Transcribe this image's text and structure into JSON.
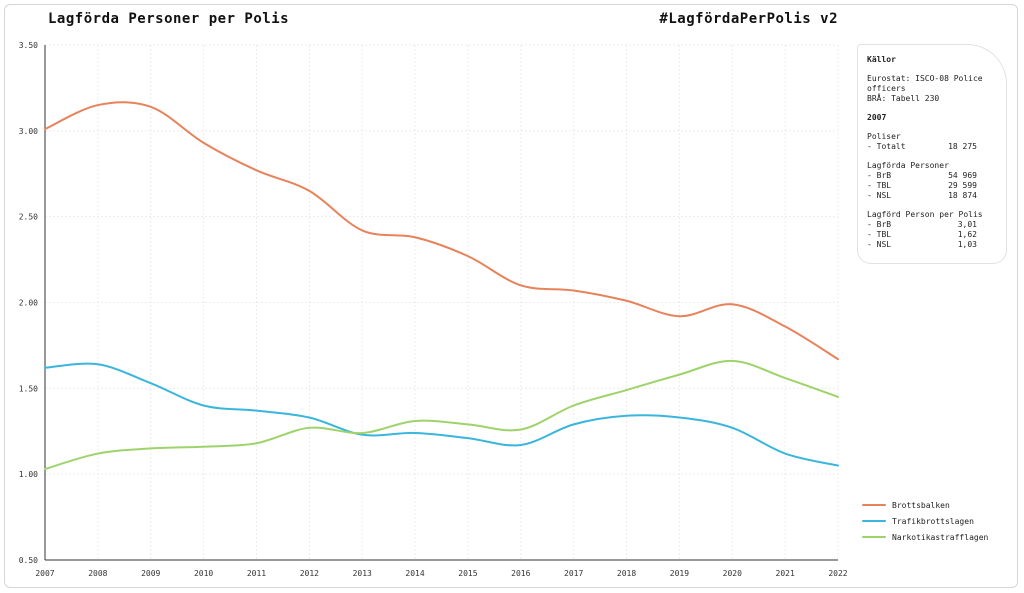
{
  "header": {
    "title": "Lagförda Personer per Polis",
    "hashtag": "#LagfördaPerPolis v2"
  },
  "info": {
    "sources_heading": "Källor",
    "sources": [
      "Eurostat: ISCO-08 Police\nofficers",
      "BRÅ: Tabell 230"
    ],
    "year_heading": "2007",
    "police_heading": "Poliser",
    "police_rows": [
      {
        "label": "- Totalt",
        "value": "18 275"
      }
    ],
    "persons_heading": "Lagförda Personer",
    "persons_rows": [
      {
        "label": "- BrB",
        "value": "54 969"
      },
      {
        "label": "- TBL",
        "value": "29 599"
      },
      {
        "label": "- NSL",
        "value": "18 874"
      }
    ],
    "ratio_heading": "Lagförd Person per Polis",
    "ratio_rows": [
      {
        "label": "- BrB",
        "value": "3,01"
      },
      {
        "label": "- TBL",
        "value": "1,62"
      },
      {
        "label": "- NSL",
        "value": "1,03"
      }
    ]
  },
  "chart_data": {
    "type": "line",
    "title": "Lagförda Personer per Polis",
    "xlabel": "",
    "ylabel": "",
    "ylim": [
      0.5,
      3.5
    ],
    "yticks": [
      "0.50",
      "1.00",
      "1.50",
      "2.00",
      "2.50",
      "3.00",
      "3.50"
    ],
    "x": [
      2007,
      2008,
      2009,
      2010,
      2011,
      2012,
      2013,
      2014,
      2015,
      2016,
      2017,
      2018,
      2019,
      2020,
      2021,
      2022
    ],
    "grid": true,
    "legend_position": "bottom-right",
    "series": [
      {
        "name": "Brottsbalken",
        "color": "#e8825a",
        "values": [
          3.01,
          3.15,
          3.14,
          2.93,
          2.77,
          2.65,
          2.42,
          2.38,
          2.27,
          2.1,
          2.07,
          2.01,
          1.92,
          1.99,
          1.86,
          1.67
        ]
      },
      {
        "name": "Trafikbrottslagen",
        "color": "#3ab5dc",
        "values": [
          1.62,
          1.64,
          1.53,
          1.4,
          1.37,
          1.33,
          1.23,
          1.24,
          1.21,
          1.17,
          1.29,
          1.34,
          1.33,
          1.27,
          1.12,
          1.05
        ]
      },
      {
        "name": "Narkotikastrafflagen",
        "color": "#9ed36b",
        "values": [
          1.03,
          1.12,
          1.15,
          1.16,
          1.18,
          1.27,
          1.24,
          1.31,
          1.29,
          1.26,
          1.4,
          1.49,
          1.58,
          1.66,
          1.56,
          1.45
        ]
      }
    ]
  }
}
